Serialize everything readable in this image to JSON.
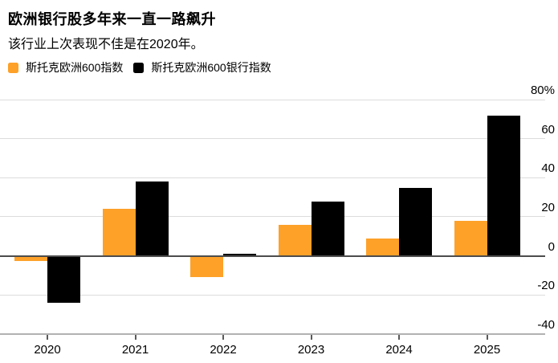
{
  "header": {
    "title": "欧洲银行股多年来一直一路飙升",
    "subtitle": "该行业上次表现不佳是在2020年。"
  },
  "legend": {
    "items": [
      {
        "label": "斯托克欧洲600指数",
        "color": "#FDA129"
      },
      {
        "label": "斯托克欧洲600银行指数",
        "color": "#000000"
      }
    ]
  },
  "chart_data": {
    "type": "bar",
    "title": "欧洲银行股多年来一直一路飙升",
    "subtitle": "该行业上次表现不佳是在2020年。",
    "categories": [
      "2020",
      "2021",
      "2022",
      "2023",
      "2024",
      "2025"
    ],
    "series": [
      {
        "name": "斯托克欧洲600指数",
        "color": "#FDA129",
        "values": [
          -2.5,
          24,
          -11,
          16,
          9,
          18
        ]
      },
      {
        "name": "斯托克欧洲600银行指数",
        "color": "#000000",
        "values": [
          -24,
          38,
          1,
          28,
          35,
          72
        ]
      }
    ],
    "unit": "%",
    "ylim": [
      -40,
      80
    ],
    "yticks": [
      80,
      60,
      40,
      20,
      0,
      -20,
      -40
    ],
    "ytick_labels": [
      "80%",
      "60",
      "40",
      "20",
      "0",
      "-20",
      "-40"
    ],
    "grid": "horizontal",
    "legend_position": "top",
    "baseline": 0
  },
  "colors": {
    "background": "#FFFFFF",
    "grid": "#DCDCDC",
    "zero_line": "#4D4D4D",
    "axis_line": "#B2B2B2",
    "text": "#000000"
  }
}
